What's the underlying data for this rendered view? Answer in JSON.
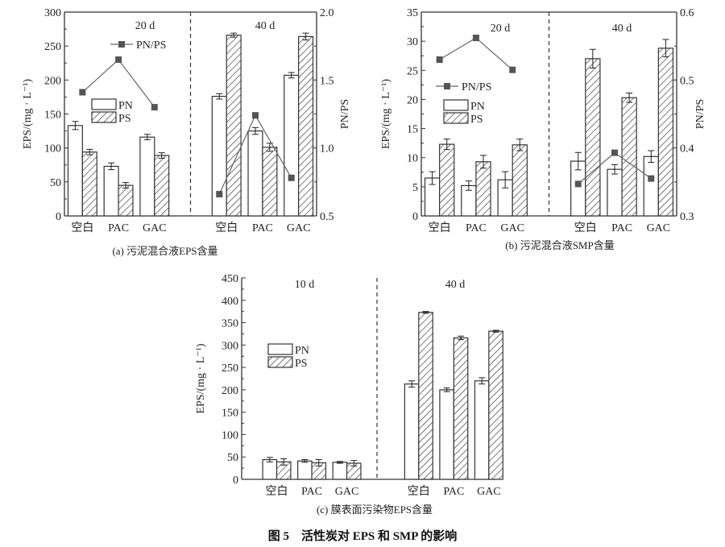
{
  "figure_caption": "图 5　活性炭对 EPS 和 SMP 的影响",
  "colors": {
    "axis": "#333333",
    "bar_fill": "#ffffff",
    "hatch": "#333333",
    "line": "#666666",
    "marker": "#555555"
  },
  "chart_data": [
    {
      "type": "bar",
      "caption": "(a) 污泥混合液EPS含量",
      "ylabel": "EPS/(mg · L⁻¹)",
      "y2label": "PN/PS",
      "ylim": [
        0,
        300
      ],
      "yticks": [
        0,
        50,
        100,
        150,
        200,
        250,
        300
      ],
      "y2lim": [
        0.5,
        2.0
      ],
      "y2ticks": [
        "0.5",
        "1.0",
        "1.5",
        "2.0"
      ],
      "categories": [
        "空白",
        "PAC",
        "GAC",
        "空白",
        "PAC",
        "GAC"
      ],
      "periods": [
        "20 d",
        "40 d"
      ],
      "legend": {
        "pn": "PN",
        "ps": "PS",
        "ratio": "PN/PS"
      },
      "series": [
        {
          "name": "PN",
          "values": [
            133,
            73,
            116,
            176,
            125,
            207
          ],
          "errors": [
            6,
            5,
            4,
            4,
            5,
            4
          ]
        },
        {
          "name": "PS",
          "values": [
            94,
            45,
            89,
            266,
            101,
            264
          ],
          "errors": [
            4,
            4,
            4,
            3,
            6,
            5
          ]
        },
        {
          "name": "PN/PS",
          "axis": "right",
          "values": [
            1.41,
            1.65,
            1.3,
            0.66,
            1.24,
            0.78
          ]
        }
      ]
    },
    {
      "type": "bar",
      "caption": "(b) 污泥混合液SMP含量",
      "ylabel": "EPS/(mg · L⁻¹)",
      "y2label": "PN/PS",
      "ylim": [
        0,
        35
      ],
      "yticks": [
        0,
        5,
        10,
        15,
        20,
        25,
        30,
        35
      ],
      "y2lim": [
        0.3,
        0.6
      ],
      "y2ticks": [
        "0.3",
        "0.4",
        "0.5",
        "0.6"
      ],
      "categories": [
        "空白",
        "PAC",
        "GAC",
        "空白",
        "PAC",
        "GAC"
      ],
      "periods": [
        "20 d",
        "40 d"
      ],
      "legend": {
        "pn": "PN",
        "ps": "PS",
        "ratio": "PN/PS"
      },
      "series": [
        {
          "name": "PN",
          "values": [
            6.5,
            5.2,
            6.2,
            9.4,
            8.0,
            10.2
          ],
          "errors": [
            1.1,
            0.8,
            1.4,
            1.5,
            0.8,
            1.0
          ]
        },
        {
          "name": "PS",
          "values": [
            12.3,
            9.3,
            12.2,
            27.0,
            20.3,
            28.8
          ],
          "errors": [
            0.9,
            1.1,
            1.0,
            1.6,
            0.8,
            1.5
          ]
        },
        {
          "name": "PN/PS",
          "axis": "right",
          "values": [
            0.53,
            0.562,
            0.515,
            0.347,
            0.393,
            0.355
          ]
        }
      ]
    },
    {
      "type": "bar",
      "caption": "(c) 膜表面污染物EPS含量",
      "ylabel": "EPS/(mg · L⁻¹)",
      "ylim": [
        0,
        450
      ],
      "yticks": [
        0,
        50,
        100,
        150,
        200,
        250,
        300,
        350,
        400,
        450
      ],
      "categories": [
        "空白",
        "PAC",
        "GAC",
        "空白",
        "PAC",
        "GAC"
      ],
      "periods": [
        "10 d",
        "40 d"
      ],
      "legend": {
        "pn": "PN",
        "ps": "PS"
      },
      "series": [
        {
          "name": "PN",
          "values": [
            44,
            41,
            38,
            213,
            200,
            220
          ],
          "errors": [
            5,
            3,
            2,
            7,
            4,
            7
          ]
        },
        {
          "name": "PS",
          "values": [
            39,
            37,
            36,
            373,
            316,
            331
          ],
          "errors": [
            7,
            7,
            6,
            2,
            4,
            2
          ]
        }
      ]
    }
  ]
}
